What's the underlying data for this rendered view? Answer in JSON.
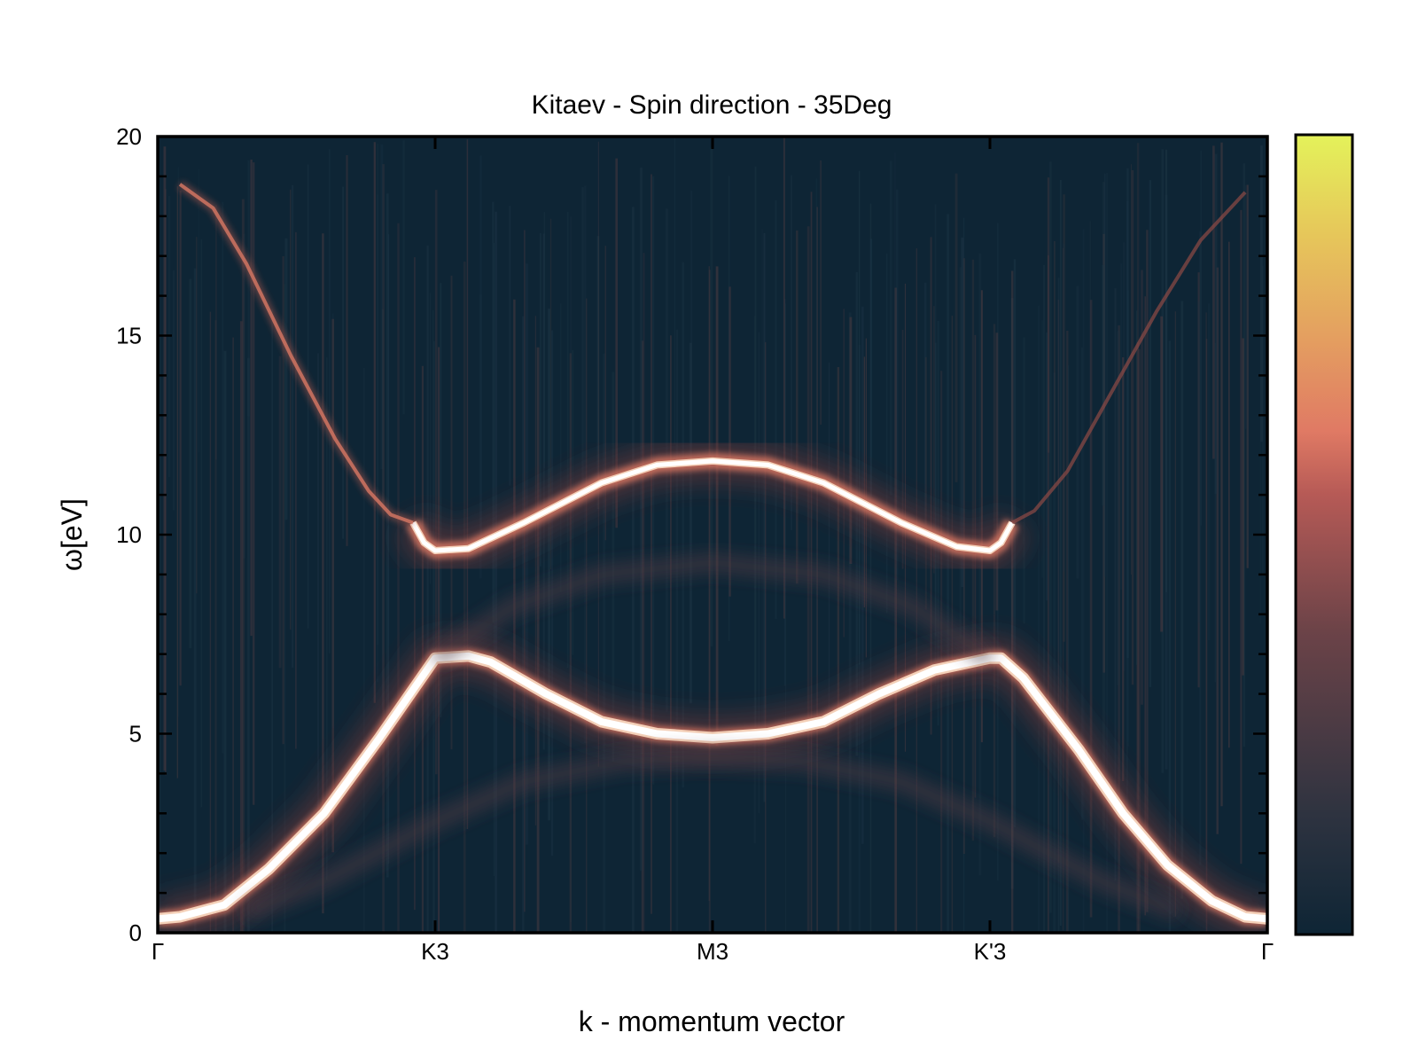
{
  "chart_data": {
    "type": "heatmap",
    "title": "Kitaev - Spin direction - 35Deg",
    "xlabel": "k - momentum vector",
    "ylabel": "ω[eV]",
    "ylim": [
      0,
      20
    ],
    "y_ticks": [
      {
        "value": 0,
        "label": "0"
      },
      {
        "value": 5,
        "label": "5"
      },
      {
        "value": 10,
        "label": "10"
      },
      {
        "value": 15,
        "label": "15"
      },
      {
        "value": 20,
        "label": "20"
      }
    ],
    "x_ticks": [
      "Γ",
      "K3",
      "M3",
      "K'3",
      "Γ"
    ],
    "colormap": [
      "#0e2535",
      "#2e3340",
      "#6c4348",
      "#c3615a",
      "#e07a64",
      "#e4a060",
      "#e6c85a",
      "#e4f25a"
    ],
    "bands": [
      {
        "name": "lower",
        "intensity": 1.0,
        "points": [
          [
            0.0,
            0.35
          ],
          [
            0.02,
            0.4
          ],
          [
            0.06,
            0.7
          ],
          [
            0.1,
            1.6
          ],
          [
            0.15,
            3.0
          ],
          [
            0.2,
            4.9
          ],
          [
            0.24,
            6.5
          ],
          [
            0.25,
            6.9
          ],
          [
            0.28,
            6.95
          ],
          [
            0.3,
            6.8
          ],
          [
            0.35,
            6.0
          ],
          [
            0.4,
            5.3
          ],
          [
            0.45,
            5.0
          ],
          [
            0.5,
            4.9
          ],
          [
            0.55,
            5.0
          ],
          [
            0.6,
            5.3
          ],
          [
            0.65,
            6.0
          ],
          [
            0.7,
            6.6
          ],
          [
            0.75,
            6.9
          ],
          [
            0.76,
            6.9
          ],
          [
            0.78,
            6.4
          ],
          [
            0.83,
            4.6
          ],
          [
            0.87,
            3.0
          ],
          [
            0.91,
            1.7
          ],
          [
            0.95,
            0.8
          ],
          [
            0.98,
            0.4
          ],
          [
            1.0,
            0.35
          ]
        ]
      },
      {
        "name": "upper",
        "intensity": 0.9,
        "points": [
          [
            0.23,
            10.3
          ],
          [
            0.24,
            9.8
          ],
          [
            0.25,
            9.6
          ],
          [
            0.28,
            9.65
          ],
          [
            0.33,
            10.3
          ],
          [
            0.4,
            11.3
          ],
          [
            0.45,
            11.75
          ],
          [
            0.5,
            11.85
          ],
          [
            0.55,
            11.75
          ],
          [
            0.6,
            11.3
          ],
          [
            0.67,
            10.3
          ],
          [
            0.72,
            9.7
          ],
          [
            0.75,
            9.6
          ],
          [
            0.76,
            9.8
          ],
          [
            0.77,
            10.3
          ]
        ]
      },
      {
        "name": "upper-left-branch",
        "intensity": 0.45,
        "points": [
          [
            0.02,
            18.8
          ],
          [
            0.05,
            18.2
          ],
          [
            0.08,
            16.8
          ],
          [
            0.12,
            14.5
          ],
          [
            0.16,
            12.4
          ],
          [
            0.19,
            11.1
          ],
          [
            0.21,
            10.5
          ],
          [
            0.23,
            10.3
          ]
        ]
      },
      {
        "name": "upper-right-branch",
        "intensity": 0.25,
        "points": [
          [
            0.77,
            10.3
          ],
          [
            0.79,
            10.6
          ],
          [
            0.82,
            11.6
          ],
          [
            0.86,
            13.6
          ],
          [
            0.9,
            15.6
          ],
          [
            0.94,
            17.4
          ],
          [
            0.98,
            18.6
          ]
        ]
      },
      {
        "name": "faint-lower-arc",
        "intensity": 0.15,
        "points": [
          [
            0.08,
            0.5
          ],
          [
            0.15,
            1.3
          ],
          [
            0.25,
            2.8
          ],
          [
            0.33,
            3.8
          ],
          [
            0.42,
            4.3
          ],
          [
            0.5,
            4.4
          ],
          [
            0.58,
            4.3
          ],
          [
            0.67,
            3.8
          ],
          [
            0.75,
            2.8
          ],
          [
            0.85,
            1.3
          ],
          [
            0.92,
            0.5
          ]
        ]
      },
      {
        "name": "faint-dome",
        "intensity": 0.12,
        "points": [
          [
            0.25,
            6.9
          ],
          [
            0.32,
            8.2
          ],
          [
            0.4,
            9.0
          ],
          [
            0.5,
            9.3
          ],
          [
            0.6,
            9.0
          ],
          [
            0.68,
            8.2
          ],
          [
            0.75,
            6.9
          ]
        ]
      }
    ]
  }
}
